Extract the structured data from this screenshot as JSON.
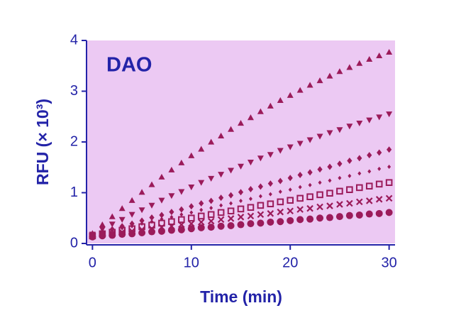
{
  "chart_data": {
    "type": "scatter",
    "title": "DAO",
    "xlabel": "Time (min)",
    "ylabel": "RFU (× 10³)",
    "x": [
      0,
      1,
      2,
      3,
      4,
      5,
      6,
      7,
      8,
      9,
      10,
      11,
      12,
      13,
      14,
      15,
      16,
      17,
      18,
      19,
      20,
      21,
      22,
      23,
      24,
      25,
      26,
      27,
      28,
      29,
      30
    ],
    "series": [
      {
        "marker": "triangle-up",
        "color": "#9b1b5a",
        "values": [
          0.2,
          0.37,
          0.53,
          0.69,
          0.85,
          1.01,
          1.16,
          1.31,
          1.45,
          1.59,
          1.73,
          1.86,
          2.0,
          2.12,
          2.25,
          2.37,
          2.48,
          2.6,
          2.71,
          2.82,
          2.92,
          3.02,
          3.12,
          3.21,
          3.3,
          3.39,
          3.47,
          3.55,
          3.63,
          3.7,
          3.77
        ]
      },
      {
        "marker": "triangle-down",
        "color": "#9b1b5a",
        "values": [
          0.18,
          0.28,
          0.38,
          0.47,
          0.57,
          0.66,
          0.75,
          0.85,
          0.94,
          1.02,
          1.11,
          1.2,
          1.28,
          1.36,
          1.44,
          1.52,
          1.6,
          1.68,
          1.75,
          1.83,
          1.9,
          1.97,
          2.04,
          2.11,
          2.18,
          2.24,
          2.31,
          2.37,
          2.43,
          2.49,
          2.55
        ]
      },
      {
        "marker": "diamond",
        "color": "#9b1b5a",
        "values": [
          0.17,
          0.23,
          0.28,
          0.34,
          0.39,
          0.45,
          0.51,
          0.56,
          0.62,
          0.67,
          0.73,
          0.79,
          0.84,
          0.9,
          0.95,
          1.01,
          1.07,
          1.12,
          1.18,
          1.23,
          1.29,
          1.35,
          1.4,
          1.46,
          1.51,
          1.57,
          1.63,
          1.68,
          1.74,
          1.79,
          1.85
        ]
      },
      {
        "marker": "dot",
        "color": "#9b1b5a",
        "values": [
          0.16,
          0.21,
          0.25,
          0.3,
          0.34,
          0.39,
          0.43,
          0.48,
          0.52,
          0.57,
          0.61,
          0.66,
          0.7,
          0.75,
          0.79,
          0.84,
          0.88,
          0.93,
          0.97,
          1.02,
          1.06,
          1.11,
          1.15,
          1.2,
          1.24,
          1.29,
          1.33,
          1.38,
          1.42,
          1.47,
          1.51
        ]
      },
      {
        "marker": "square",
        "color": "#9b1b5a",
        "values": [
          0.15,
          0.19,
          0.22,
          0.26,
          0.29,
          0.33,
          0.36,
          0.4,
          0.43,
          0.47,
          0.5,
          0.54,
          0.57,
          0.61,
          0.64,
          0.68,
          0.71,
          0.75,
          0.78,
          0.82,
          0.85,
          0.89,
          0.92,
          0.96,
          0.99,
          1.03,
          1.06,
          1.1,
          1.13,
          1.17,
          1.2
        ]
      },
      {
        "marker": "cross",
        "color": "#9b1b5a",
        "values": [
          0.14,
          0.17,
          0.19,
          0.22,
          0.24,
          0.27,
          0.29,
          0.32,
          0.34,
          0.37,
          0.39,
          0.42,
          0.44,
          0.47,
          0.49,
          0.52,
          0.54,
          0.57,
          0.59,
          0.62,
          0.64,
          0.67,
          0.69,
          0.72,
          0.74,
          0.77,
          0.79,
          0.82,
          0.84,
          0.87,
          0.89
        ]
      },
      {
        "marker": "circle",
        "color": "#9b1b5a",
        "values": [
          0.13,
          0.15,
          0.16,
          0.18,
          0.19,
          0.21,
          0.23,
          0.24,
          0.26,
          0.27,
          0.29,
          0.31,
          0.32,
          0.34,
          0.35,
          0.37,
          0.39,
          0.4,
          0.42,
          0.43,
          0.45,
          0.47,
          0.48,
          0.5,
          0.51,
          0.53,
          0.55,
          0.56,
          0.58,
          0.59,
          0.61
        ]
      }
    ],
    "xlim": [
      -0.6,
      30.6
    ],
    "xticks": [
      0,
      10,
      20,
      30
    ],
    "ylim": [
      0,
      4
    ],
    "yticks": [
      0,
      1,
      2,
      3,
      4
    ],
    "plot_background": "#ecc9f3",
    "axis_color": "#2323a8"
  }
}
